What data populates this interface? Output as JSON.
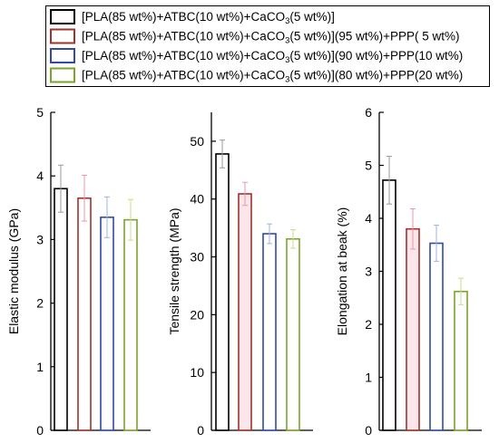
{
  "legend": {
    "entries": [
      {
        "before": "[PLA(85 wt%)+ATBC(10 wt%)+CaCO",
        "sub": "3",
        "after": "(5 wt%)]",
        "color": "#000000"
      },
      {
        "before": "[PLA(85 wt%)+ATBC(10 wt%)+CaCO",
        "sub": "3",
        "after": "(5 wt%)](95 wt%)+PPP(  5 wt%)",
        "color": "#a0332a"
      },
      {
        "before": "[PLA(85 wt%)+ATBC(10 wt%)+CaCO",
        "sub": "3",
        "after": "(5 wt%)](90 wt%)+PPP(10 wt%)",
        "color": "#2f4aa8"
      },
      {
        "before": "[PLA(85 wt%)+ATBC(10 wt%)+CaCO",
        "sub": "3",
        "after": "(5 wt%)](80 wt%)+PPP(20 wt%)",
        "color": "#7aa42a"
      }
    ]
  },
  "chart_data": [
    {
      "type": "bar",
      "ylabel": "Elastic modulus (GPa)",
      "ylim": [
        0,
        5
      ],
      "yticks": [
        0,
        1,
        2,
        3,
        4,
        5
      ],
      "values": [
        3.8,
        3.65,
        3.35,
        3.31
      ],
      "errors": [
        0.37,
        0.36,
        0.32,
        0.32
      ],
      "colors": [
        "#000000",
        "#a0332a",
        "#2f4aa8",
        "#7aa42a"
      ],
      "error_colors": [
        "#999999",
        "#e59aa6",
        "#9fb3e0",
        "#c7dd8e"
      ],
      "fills": [
        "#ffffff",
        "#ffffff",
        "#ffffff",
        "#ffffff"
      ]
    },
    {
      "type": "bar",
      "ylabel": "Tensile strength (MPa)",
      "ylim": [
        0,
        55
      ],
      "yticks": [
        0,
        10,
        20,
        30,
        40,
        50
      ],
      "values": [
        47.8,
        40.9,
        34.0,
        33.1
      ],
      "errors": [
        2.4,
        2.0,
        1.7,
        1.6
      ],
      "colors": [
        "#000000",
        "#a0332a",
        "#2f4aa8",
        "#7aa42a"
      ],
      "error_colors": [
        "#999999",
        "#e59aa6",
        "#9fb3e0",
        "#c7dd8e"
      ],
      "fills": [
        "#ffffff",
        "#fbe6ec",
        "#ffffff",
        "#ffffff"
      ]
    },
    {
      "type": "bar",
      "ylabel": "Elongation at beak (%)",
      "ylim": [
        0,
        6
      ],
      "yticks": [
        0,
        1,
        2,
        3,
        4,
        5,
        6
      ],
      "values": [
        4.72,
        3.8,
        3.53,
        2.62
      ],
      "errors": [
        0.45,
        0.38,
        0.34,
        0.25
      ],
      "colors": [
        "#000000",
        "#a0332a",
        "#2f4aa8",
        "#7aa42a"
      ],
      "error_colors": [
        "#999999",
        "#e59aa6",
        "#9fb3e0",
        "#c7dd8e"
      ],
      "fills": [
        "#ffffff",
        "#fbe6ec",
        "#ffffff",
        "#ffffff"
      ]
    }
  ]
}
